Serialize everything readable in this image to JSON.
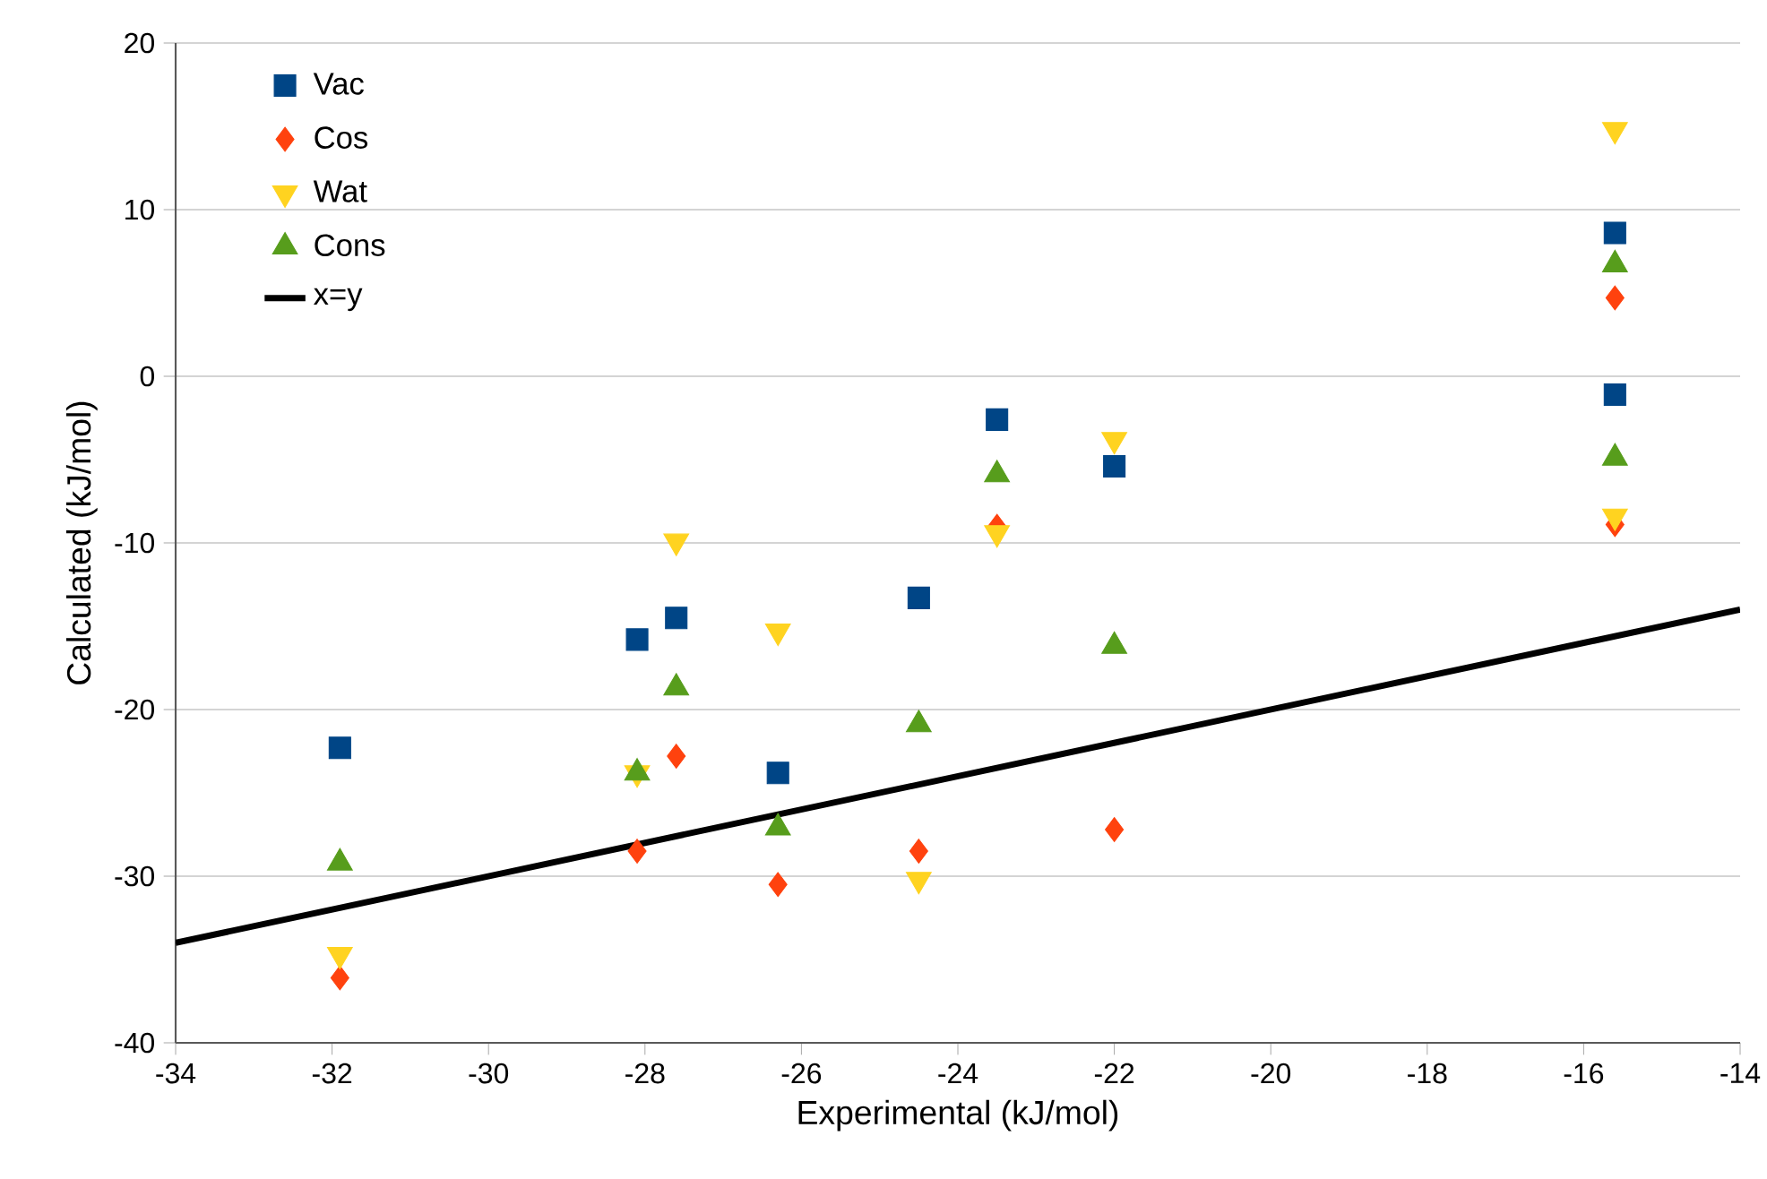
{
  "chart_data": {
    "type": "scatter",
    "xlabel": "Experimental (kJ/mol)",
    "ylabel": "Calculated (kJ/mol)",
    "xlim": [
      -34,
      -14
    ],
    "ylim": [
      -40,
      20
    ],
    "xticks": [
      -34,
      -32,
      -30,
      -28,
      -26,
      -24,
      -22,
      -20,
      -18,
      -16,
      -14
    ],
    "yticks": [
      -40,
      -30,
      -20,
      -10,
      0,
      10,
      20
    ],
    "grid": "y",
    "legend": "top left",
    "series": [
      {
        "name": "Vac",
        "color": "#004586",
        "marker": "square",
        "x": [
          -31.9,
          -28.1,
          -27.6,
          -26.3,
          -24.5,
          -23.5,
          -22.0,
          -15.6,
          -15.6
        ],
        "values": [
          -22.3,
          -15.8,
          -14.5,
          -23.8,
          -13.3,
          -2.6,
          -5.4,
          8.6,
          -1.1
        ]
      },
      {
        "name": "Cos",
        "color": "#ff420e",
        "marker": "diamond",
        "x": [
          -31.9,
          -28.1,
          -27.6,
          -26.3,
          -24.5,
          -23.5,
          -22.0,
          -15.6,
          -15.6
        ],
        "values": [
          -36.1,
          -28.5,
          -22.8,
          -30.5,
          -28.5,
          -9.0,
          -27.2,
          4.7,
          -8.9
        ]
      },
      {
        "name": "Wat",
        "color": "#ffd320",
        "marker": "triangle-down",
        "x": [
          -31.9,
          -28.1,
          -27.6,
          -26.3,
          -24.5,
          -23.5,
          -22.0,
          -15.6,
          -15.6
        ],
        "values": [
          -34.7,
          -23.8,
          -9.9,
          -15.3,
          -30.2,
          -9.4,
          -3.8,
          14.8,
          -8.4
        ]
      },
      {
        "name": "Cons",
        "color": "#579d1c",
        "marker": "triangle",
        "x": [
          -31.9,
          -28.1,
          -27.6,
          -26.3,
          -24.5,
          -23.5,
          -22.0,
          -15.6,
          -15.6
        ],
        "values": [
          -29.2,
          -23.8,
          -18.7,
          -27.1,
          -20.9,
          -5.9,
          -16.2,
          6.7,
          -4.9
        ]
      },
      {
        "name": "x=y",
        "type": "line",
        "color": "#000000",
        "marker": "none",
        "line_style": "solid",
        "x": [
          -34,
          -14
        ],
        "values": [
          -34,
          -14
        ]
      }
    ]
  }
}
